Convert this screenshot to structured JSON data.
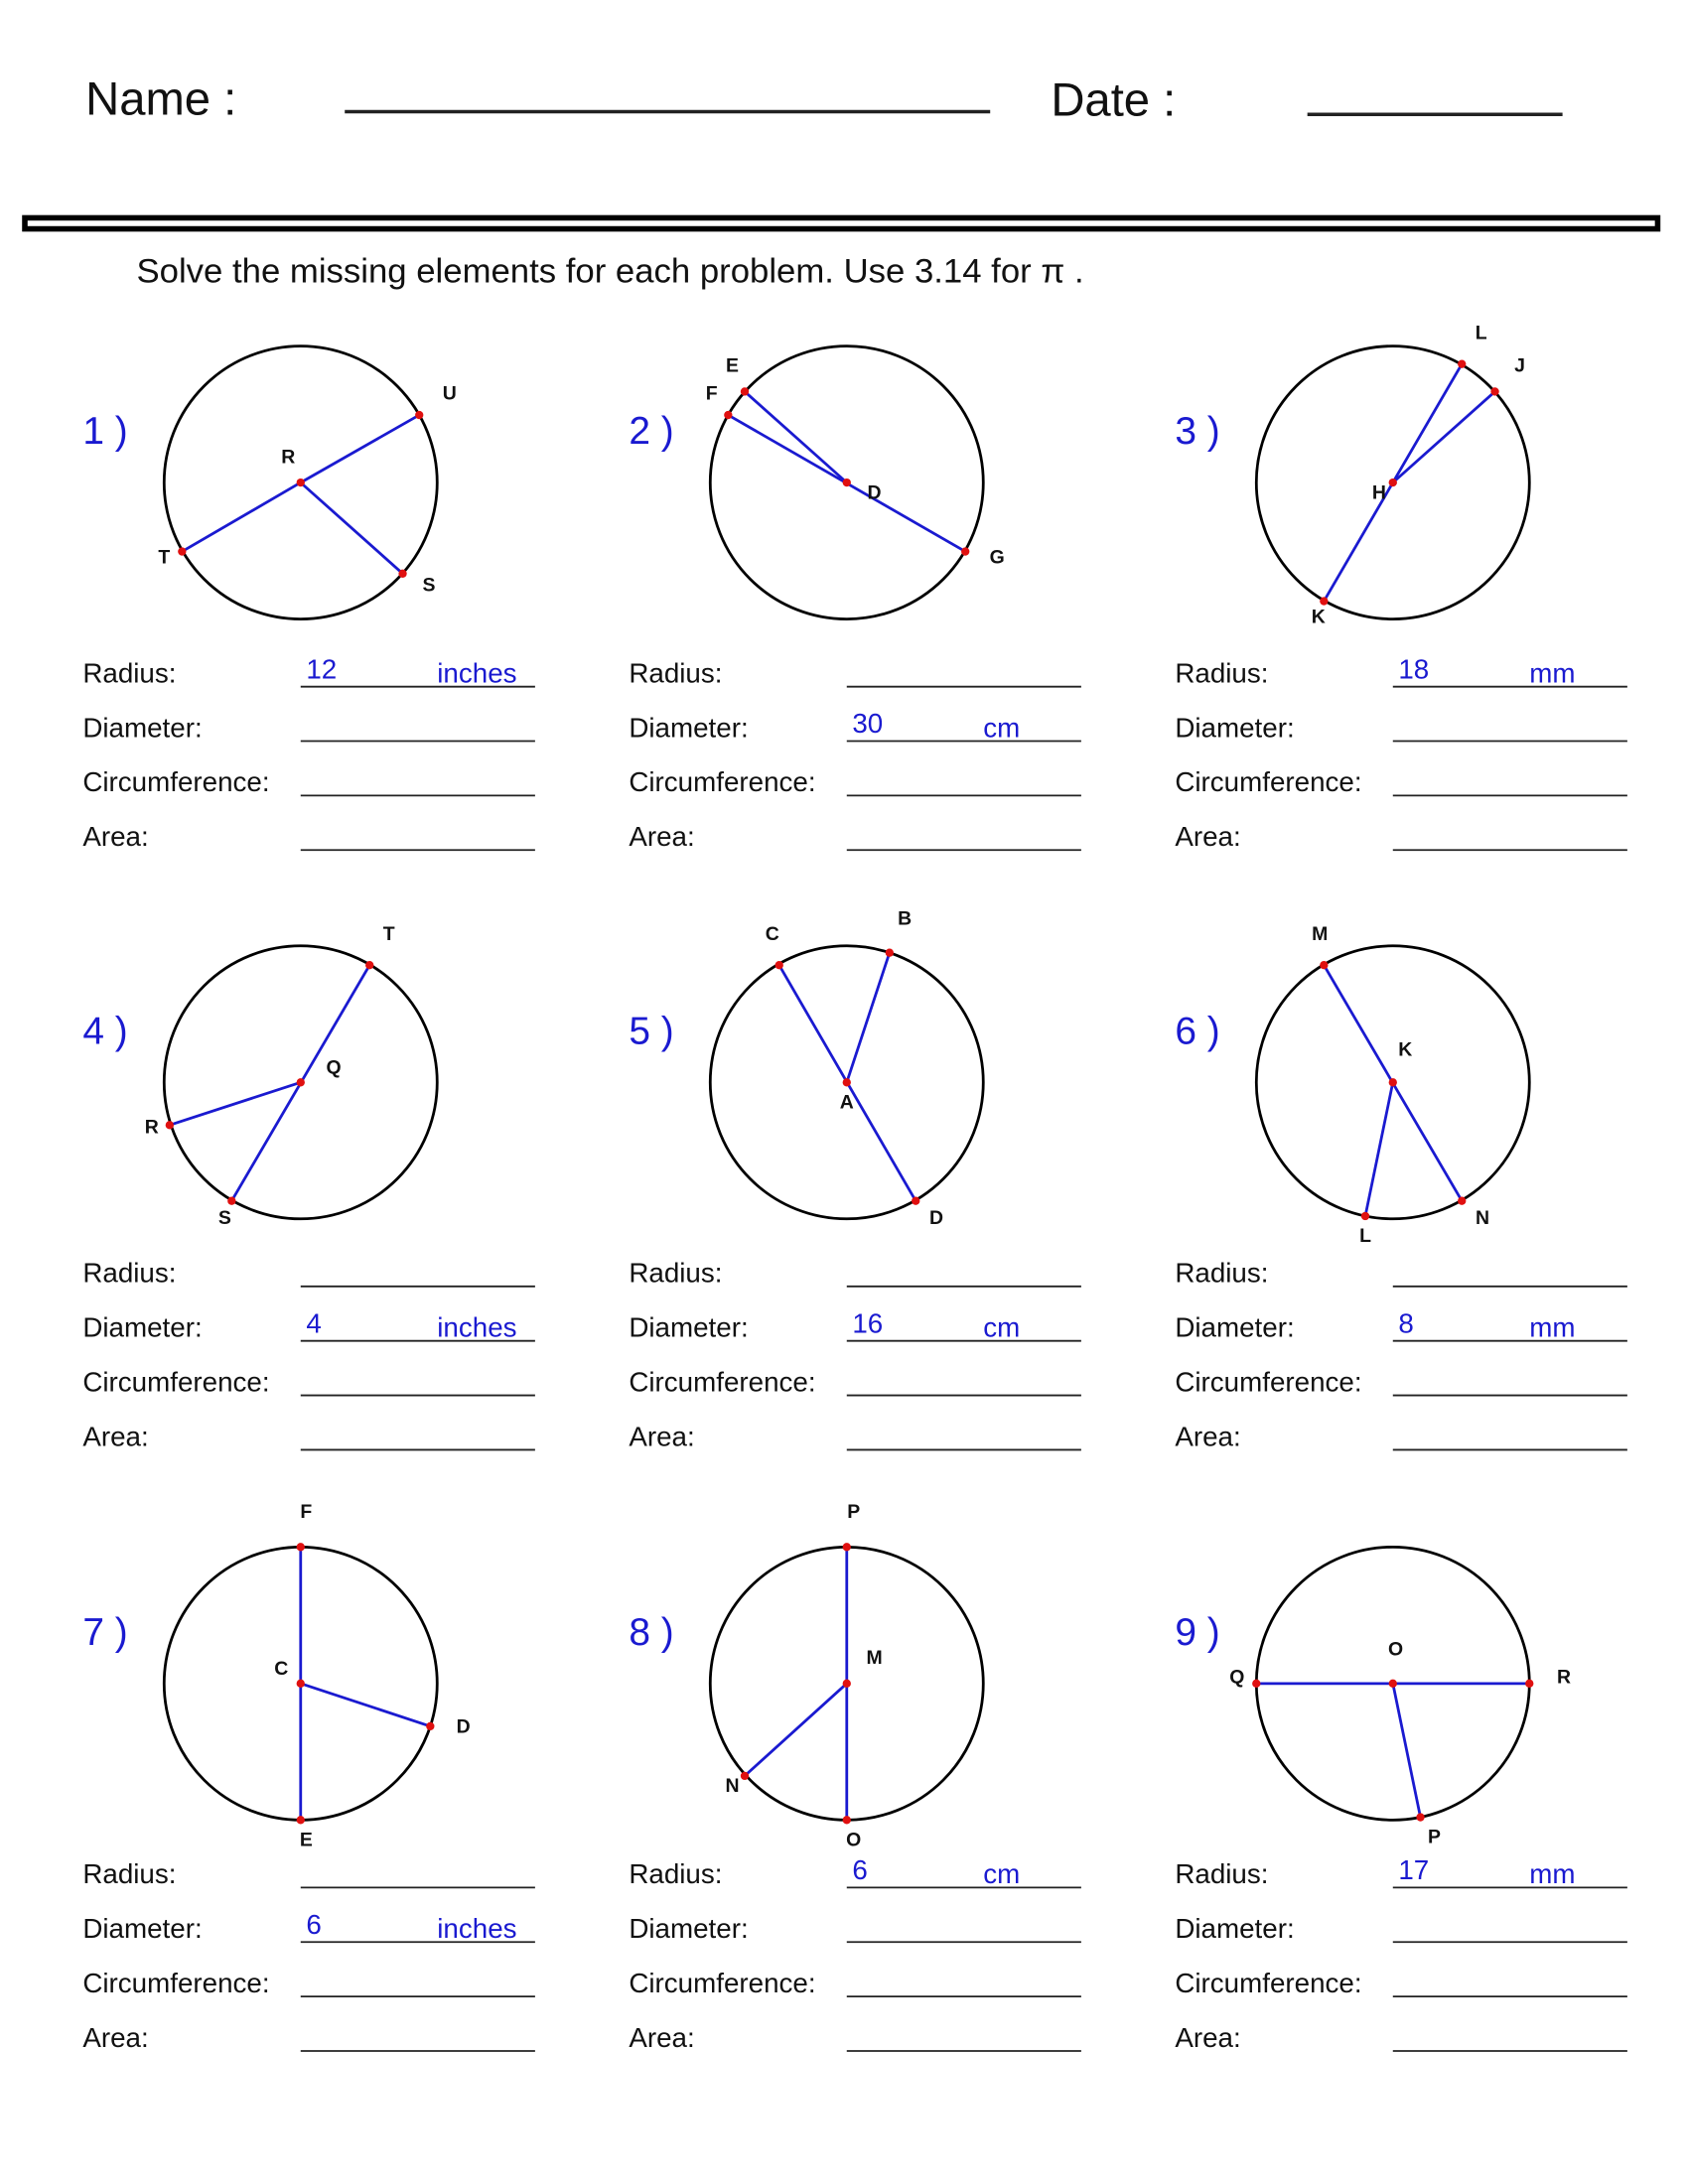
{
  "header": {
    "name_label": "Name :",
    "date_label": "Date :"
  },
  "instructions": "Solve the missing elements for each problem. Use 3.14 for π .",
  "colors": {
    "given_value": "#1a1ad0",
    "segment": "#1a1ad0",
    "point": "#e01010",
    "circle": "#000000"
  },
  "problems": [
    {
      "number": "1 )",
      "points": [
        "R",
        "U",
        "T",
        "S"
      ],
      "fields": [
        {
          "label": "Radius:",
          "value": "12",
          "unit": "inches"
        },
        {
          "label": "Diameter:",
          "value": "",
          "unit": ""
        },
        {
          "label": "Circumference:",
          "value": "",
          "unit": ""
        },
        {
          "label": "Area:",
          "value": "",
          "unit": ""
        }
      ]
    },
    {
      "number": "2 )",
      "points": [
        "D",
        "E",
        "F",
        "G"
      ],
      "fields": [
        {
          "label": "Radius:",
          "value": "",
          "unit": ""
        },
        {
          "label": "Diameter:",
          "value": "30",
          "unit": "cm"
        },
        {
          "label": "Circumference:",
          "value": "",
          "unit": ""
        },
        {
          "label": "Area:",
          "value": "",
          "unit": ""
        }
      ]
    },
    {
      "number": "3 )",
      "points": [
        "H",
        "L",
        "J",
        "K"
      ],
      "fields": [
        {
          "label": "Radius:",
          "value": "18",
          "unit": "mm"
        },
        {
          "label": "Diameter:",
          "value": "",
          "unit": ""
        },
        {
          "label": "Circumference:",
          "value": "",
          "unit": ""
        },
        {
          "label": "Area:",
          "value": "",
          "unit": ""
        }
      ]
    },
    {
      "number": "4 )",
      "points": [
        "Q",
        "T",
        "S",
        "R"
      ],
      "fields": [
        {
          "label": "Radius:",
          "value": "",
          "unit": ""
        },
        {
          "label": "Diameter:",
          "value": "4",
          "unit": "inches"
        },
        {
          "label": "Circumference:",
          "value": "",
          "unit": ""
        },
        {
          "label": "Area:",
          "value": "",
          "unit": ""
        }
      ]
    },
    {
      "number": "5 )",
      "points": [
        "A",
        "C",
        "B",
        "D"
      ],
      "fields": [
        {
          "label": "Radius:",
          "value": "",
          "unit": ""
        },
        {
          "label": "Diameter:",
          "value": "16",
          "unit": "cm"
        },
        {
          "label": "Circumference:",
          "value": "",
          "unit": ""
        },
        {
          "label": "Area:",
          "value": "",
          "unit": ""
        }
      ]
    },
    {
      "number": "6 )",
      "points": [
        "K",
        "M",
        "N",
        "L"
      ],
      "fields": [
        {
          "label": "Radius:",
          "value": "",
          "unit": ""
        },
        {
          "label": "Diameter:",
          "value": "8",
          "unit": "mm"
        },
        {
          "label": "Circumference:",
          "value": "",
          "unit": ""
        },
        {
          "label": "Area:",
          "value": "",
          "unit": ""
        }
      ]
    },
    {
      "number": "7 )",
      "points": [
        "C",
        "F",
        "E",
        "D"
      ],
      "fields": [
        {
          "label": "Radius:",
          "value": "",
          "unit": ""
        },
        {
          "label": "Diameter:",
          "value": "6",
          "unit": "inches"
        },
        {
          "label": "Circumference:",
          "value": "",
          "unit": ""
        },
        {
          "label": "Area:",
          "value": "",
          "unit": ""
        }
      ]
    },
    {
      "number": "8 )",
      "points": [
        "M",
        "P",
        "O",
        "N"
      ],
      "fields": [
        {
          "label": "Radius:",
          "value": "6",
          "unit": "cm"
        },
        {
          "label": "Diameter:",
          "value": "",
          "unit": ""
        },
        {
          "label": "Circumference:",
          "value": "",
          "unit": ""
        },
        {
          "label": "Area:",
          "value": "",
          "unit": ""
        }
      ]
    },
    {
      "number": "9 )",
      "points": [
        "O",
        "Q",
        "R",
        "P"
      ],
      "fields": [
        {
          "label": "Radius:",
          "value": "17",
          "unit": "mm"
        },
        {
          "label": "Diameter:",
          "value": "",
          "unit": ""
        },
        {
          "label": "Circumference:",
          "value": "",
          "unit": ""
        },
        {
          "label": "Area:",
          "value": "",
          "unit": ""
        }
      ]
    }
  ]
}
